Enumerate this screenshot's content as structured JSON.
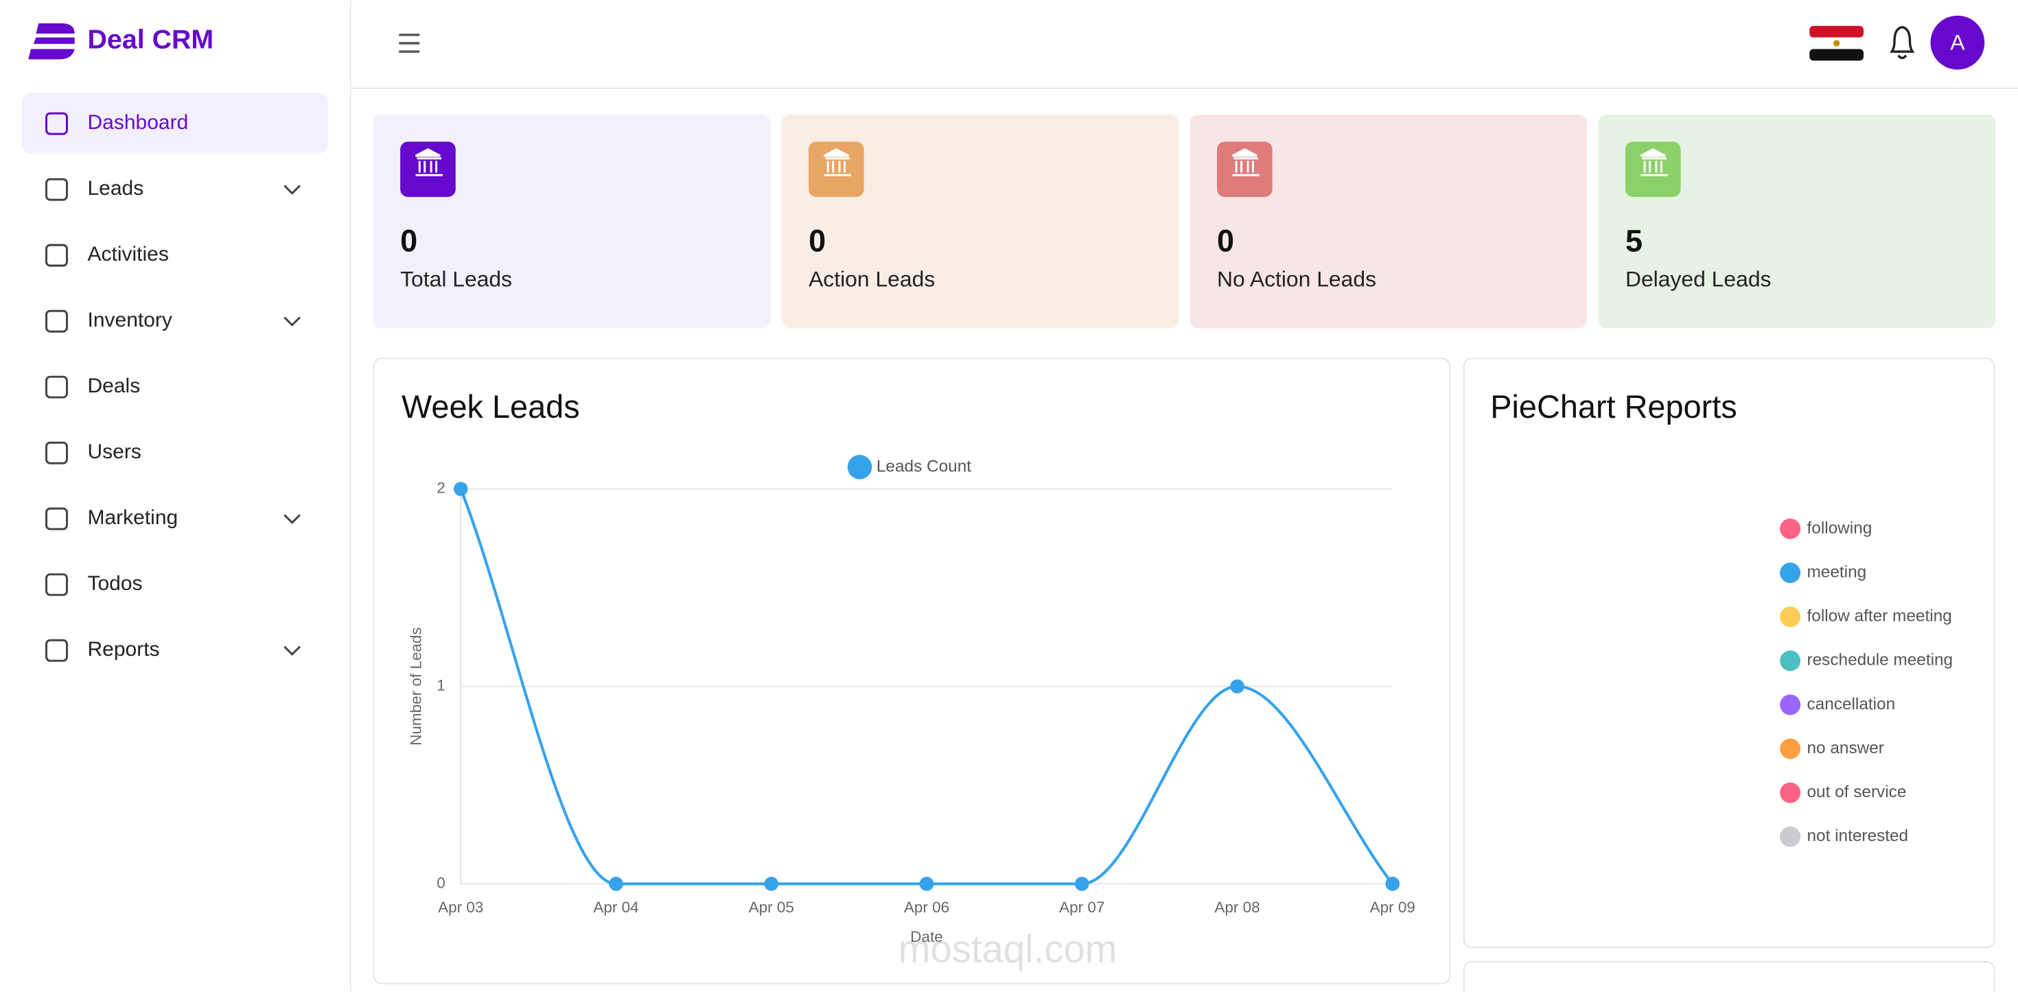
{
  "sidebar": {
    "logo": "Deal CRM",
    "menu": [
      {
        "label": "Dashboard",
        "active": true,
        "expandable": false
      },
      {
        "label": "Leads",
        "active": false,
        "expandable": true
      },
      {
        "label": "Activities",
        "active": false,
        "expandable": false
      },
      {
        "label": "Inventory",
        "active": false,
        "expandable": true
      },
      {
        "label": "Deals",
        "active": false,
        "expandable": false
      },
      {
        "label": "Users",
        "active": false,
        "expandable": false
      },
      {
        "label": "Marketing",
        "active": false,
        "expandable": true
      },
      {
        "label": "Todos",
        "active": false,
        "expandable": false
      },
      {
        "label": "Reports",
        "active": false,
        "expandable": true
      }
    ]
  },
  "header": {
    "avatar": "A"
  },
  "cards": [
    {
      "value": 0,
      "label": "Total Leads",
      "background": "#f3f0fc",
      "icon_color": "#6609cc"
    },
    {
      "value": 0,
      "label": "Action Leads",
      "background": "#f8eee5",
      "icon_color": "#e9a563"
    },
    {
      "value": 0,
      "label": "No Action Leads",
      "background": "#f8e6e6",
      "icon_color": "#df7b7b"
    },
    {
      "value": 5,
      "label": "Delayed Leads",
      "background": "#e6f2e3",
      "icon_color": "#8bd068"
    }
  ],
  "chart_data": {
    "type": "line",
    "title": "Week Leads",
    "x_label": "Date",
    "y_label": "Number of Leads",
    "categories": [
      "Apr 03",
      "Apr 04",
      "Apr 05",
      "Apr 06",
      "Apr 07",
      "Apr 08",
      "Apr 09"
    ],
    "series": [
      {
        "name": "Leads Count",
        "color": "#36a2eb",
        "values": [
          2,
          0,
          0,
          0,
          0,
          1,
          0
        ]
      }
    ],
    "ylim": [
      0,
      2
    ],
    "yticks": [
      0,
      1,
      2
    ],
    "grid": true,
    "legend": "top"
  },
  "pie_report": {
    "title": "PieChart Reports",
    "legend": [
      {
        "name": "following",
        "color": "#ff6384"
      },
      {
        "name": "meeting",
        "color": "#36a2eb"
      },
      {
        "name": "follow after meeting",
        "color": "#ffcd56"
      },
      {
        "name": "reschedule meeting",
        "color": "#4bc0c0"
      },
      {
        "name": "cancellation",
        "color": "#9966ff"
      },
      {
        "name": "no answer",
        "color": "#ff9f40"
      },
      {
        "name": "out of service",
        "color": "#ff6384"
      },
      {
        "name": "not interested",
        "color": "#c9cbcf"
      }
    ]
  },
  "watermark": "mostaql.com"
}
